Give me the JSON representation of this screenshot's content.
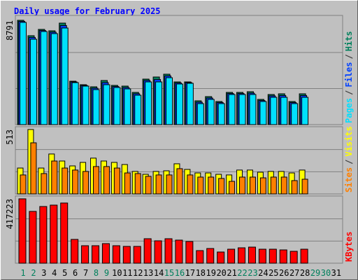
{
  "title": "Daily usage for February 2025",
  "chart_data": [
    {
      "type": "bar",
      "ylim": [
        0,
        8791
      ],
      "separator": "/",
      "series": [
        {
          "name": "Hits",
          "color": "#00805c",
          "values": [
            8791,
            7493,
            8024,
            7906,
            8555,
            3658,
            3363,
            3186,
            3717,
            3304,
            3245,
            2714,
            3835,
            4012,
            4248,
            3599,
            3599,
            2006,
            2360,
            1947,
            2714,
            2714,
            2773,
            2124,
            2537,
            2596,
            1947,
            2596,
            null,
            null,
            null
          ]
        },
        {
          "name": "Files",
          "color": "#0040ff",
          "values": [
            8700,
            7350,
            7930,
            7790,
            8350,
            3600,
            3300,
            3070,
            3540,
            3210,
            3120,
            2600,
            3720,
            3800,
            4100,
            3510,
            3540,
            1890,
            2240,
            1860,
            2620,
            2620,
            2650,
            2030,
            2420,
            2450,
            1860,
            2450,
            null,
            null,
            null
          ]
        },
        {
          "name": "Pages",
          "color": "#00e0ff",
          "values": [
            8614,
            7198,
            7847,
            7670,
            8142,
            3540,
            3245,
            2950,
            3363,
            3127,
            3009,
            2478,
            3599,
            3599,
            3953,
            3422,
            3481,
            1770,
            2124,
            1770,
            2537,
            2537,
            2537,
            1947,
            2301,
            2301,
            1770,
            2301,
            null,
            null,
            null
          ]
        }
      ]
    },
    {
      "type": "bar",
      "ylim": [
        0,
        513
      ],
      "separator": "/",
      "series": [
        {
          "name": "Visits",
          "color": "#ffff00",
          "values": [
            206,
            513,
            206,
            318,
            262,
            223,
            251,
            285,
            262,
            251,
            234,
            179,
            156,
            179,
            184,
            240,
            195,
            167,
            167,
            156,
            151,
            190,
            190,
            173,
            179,
            179,
            167,
            190,
            null,
            null,
            null
          ]
        },
        {
          "name": "Sites",
          "color": "#ff8000",
          "values": [
            151,
            407,
            162,
            262,
            206,
            190,
            179,
            218,
            218,
            206,
            167,
            162,
            140,
            151,
            151,
            201,
            151,
            134,
            134,
            123,
            100,
            134,
            134,
            128,
            134,
            134,
            106,
            117,
            null,
            null,
            null
          ]
        }
      ]
    },
    {
      "type": "bar",
      "ylim": [
        0,
        417223
      ],
      "categories": [
        "1",
        "2",
        "3",
        "4",
        "5",
        "6",
        "7",
        "8",
        "9",
        "10",
        "11",
        "12",
        "13",
        "14",
        "15",
        "16",
        "17",
        "18",
        "19",
        "20",
        "21",
        "22",
        "23",
        "24",
        "25",
        "26",
        "27",
        "28",
        "29",
        "30",
        "31"
      ],
      "category_colors": [
        "#00805c",
        "#00805c",
        "#000000",
        "#000000",
        "#000000",
        "#000000",
        "#000000",
        "#00805c",
        "#00805c",
        "#000000",
        "#000000",
        "#000000",
        "#000000",
        "#000000",
        "#00805c",
        "#00805c",
        "#000000",
        "#000000",
        "#000000",
        "#000000",
        "#000000",
        "#00805c",
        "#00805c",
        "#000000",
        "#000000",
        "#000000",
        "#000000",
        "#000000",
        "#00805c",
        "#00805c",
        "#000000"
      ],
      "series": [
        {
          "name": "KBytes",
          "color": "#ff0000",
          "values": [
            417223,
            335590,
            367335,
            376405,
            390010,
            154190,
            113375,
            113375,
            126980,
            113375,
            108840,
            108840,
            158725,
            145120,
            158725,
            149655,
            140585,
            81630,
            95235,
            72560,
            90700,
            99770,
            104305,
            90700,
            90700,
            86165,
            77095,
            90700,
            null,
            null,
            null
          ]
        }
      ]
    }
  ]
}
